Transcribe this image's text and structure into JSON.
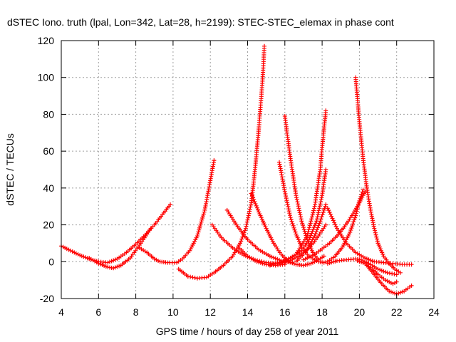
{
  "chart_data": {
    "type": "scatter",
    "title": "dSTEC Iono. truth (lpal, Lon=342, Lat=28, h=2199): STEC-STEC_elemax in phase cont",
    "xlabel": "GPS time / hours of day 258 of year 2011",
    "ylabel": "dSTEC  / TECUs",
    "xlim": [
      4,
      24
    ],
    "ylim": [
      -20,
      120
    ],
    "xticks": [
      4,
      6,
      8,
      10,
      12,
      14,
      16,
      18,
      20,
      22,
      24
    ],
    "yticks": [
      -20,
      0,
      20,
      40,
      60,
      80,
      100,
      120
    ],
    "grid": true,
    "marker": "plus",
    "color": "#ff0000",
    "series": [
      {
        "x": [
          4.0,
          4.5,
          5.0,
          5.5,
          6.0,
          6.5,
          7.0,
          7.5,
          8.0,
          8.5,
          9.0,
          9.5,
          9.85
        ],
        "y": [
          8.5,
          6,
          3.5,
          1.5,
          0,
          -0.5,
          1.5,
          5,
          9.5,
          14.5,
          20,
          26.5,
          31
        ]
      },
      {
        "x": [
          5.5,
          6.0,
          6.5,
          6.8,
          7.2,
          7.7,
          8.2,
          8.8
        ],
        "y": [
          2,
          -1,
          -3,
          -3.5,
          -2,
          2,
          9,
          18
        ]
      },
      {
        "x": [
          8.2,
          8.6,
          9.0,
          9.3,
          9.7,
          10.2,
          10.5,
          10.9,
          11.3,
          11.7,
          12.0,
          12.2
        ],
        "y": [
          7.5,
          5,
          1.5,
          0,
          -0.5,
          -0.5,
          1.5,
          6,
          14,
          28,
          44,
          55
        ]
      },
      {
        "x": [
          10.3,
          10.8,
          11.3,
          11.8,
          12.2,
          12.7,
          13.2,
          13.6,
          13.9,
          14.2,
          14.4,
          14.6,
          14.8,
          14.9
        ],
        "y": [
          -4,
          -8,
          -9,
          -8.5,
          -6,
          -2,
          3,
          10,
          18,
          32,
          50,
          72,
          98,
          117
        ]
      },
      {
        "x": [
          12.1,
          12.6,
          13.2,
          13.8,
          14.4,
          15.0,
          15.6,
          16.2
        ],
        "y": [
          20,
          13,
          7.5,
          3.5,
          1,
          -0.5,
          -1,
          0.5
        ]
      },
      {
        "x": [
          12.9,
          13.4,
          14.0,
          14.6,
          15.2,
          15.8,
          16.4
        ],
        "y": [
          28,
          20,
          12,
          6.5,
          3,
          0.5,
          -0.5
        ]
      },
      {
        "x": [
          13.5,
          14.0,
          14.5,
          15.0,
          15.5,
          16.0
        ],
        "y": [
          8,
          3,
          0,
          -1.5,
          -2,
          -1.5
        ]
      },
      {
        "x": [
          14.2,
          14.6,
          15.0,
          15.4,
          15.8,
          16.2,
          16.6,
          17.0,
          17.4,
          17.8,
          18.1
        ],
        "y": [
          37,
          27,
          18,
          10,
          4,
          0,
          -1.5,
          -2,
          -1,
          1,
          3
        ]
      },
      {
        "x": [
          15.7,
          16.0,
          16.3,
          16.6,
          16.9,
          17.2,
          17.5,
          17.8,
          18.1,
          18.3
        ],
        "y": [
          54,
          38,
          24,
          15,
          8,
          4,
          1.5,
          0,
          -0.5,
          0
        ]
      },
      {
        "x": [
          16.0,
          16.3,
          16.6,
          16.9,
          17.2,
          17.5,
          17.8
        ],
        "y": [
          79,
          56,
          36,
          22,
          12,
          5,
          1
        ]
      },
      {
        "x": [
          15.2,
          15.8,
          16.4,
          16.9,
          17.3,
          17.7,
          18.0,
          18.2
        ],
        "y": [
          -2,
          0,
          2.5,
          6,
          12,
          22,
          36,
          50
        ]
      },
      {
        "x": [
          16.0,
          16.6,
          17.2,
          17.6,
          17.9,
          18.0,
          18.1,
          18.2
        ],
        "y": [
          0,
          4,
          14,
          30,
          50,
          62,
          72,
          82
        ]
      },
      {
        "x": [
          16.2,
          16.7,
          17.2,
          17.6,
          18.0,
          18.2
        ],
        "y": [
          0,
          3,
          6.5,
          11,
          17,
          20
        ]
      },
      {
        "x": [
          16.6,
          17.1,
          17.6,
          17.9,
          18.1,
          18.2
        ],
        "y": [
          0,
          5,
          14,
          22,
          28,
          31
        ]
      },
      {
        "x": [
          18.3,
          18.8,
          19.3,
          19.8,
          20.3,
          20.8,
          21.3,
          21.8,
          22.3,
          22.8
        ],
        "y": [
          29,
          18,
          10,
          5,
          2,
          0,
          -0.5,
          -1,
          -1.5,
          -1.5
        ]
      },
      {
        "x": [
          19.8,
          20.0,
          20.2,
          20.4,
          20.6,
          20.8,
          21.0,
          21.3,
          21.6,
          21.9,
          22.2
        ],
        "y": [
          100,
          76,
          56,
          40,
          28,
          18,
          10,
          3,
          -1,
          -4,
          -6
        ]
      },
      {
        "x": [
          18.3,
          18.8,
          19.3,
          19.8,
          20.1,
          20.5,
          21.0,
          21.5,
          22.0
        ],
        "y": [
          -1,
          0.5,
          1,
          1.5,
          1,
          -1,
          -4,
          -6,
          -7
        ]
      },
      {
        "x": [
          18.3,
          18.7,
          19.1,
          19.5,
          19.8,
          20.0,
          20.2
        ],
        "y": [
          0,
          3,
          8,
          16,
          25,
          33,
          39
        ]
      },
      {
        "x": [
          19.9,
          20.3,
          20.7,
          21.0,
          21.4,
          21.8,
          22.0
        ],
        "y": [
          0.5,
          -1,
          -4,
          -7,
          -10,
          -12,
          -11
        ]
      },
      {
        "x": [
          20.4,
          20.8,
          21.2,
          21.6,
          22.0,
          22.4,
          22.8
        ],
        "y": [
          -2,
          -7,
          -12,
          -16,
          -17.5,
          -16,
          -13
        ]
      },
      {
        "x": [
          17.0,
          17.6,
          18.0,
          18.4,
          18.8,
          19.2,
          19.6,
          20.0,
          20.3
        ],
        "y": [
          1,
          4,
          7,
          10,
          14,
          19,
          25,
          32,
          38
        ]
      }
    ]
  }
}
